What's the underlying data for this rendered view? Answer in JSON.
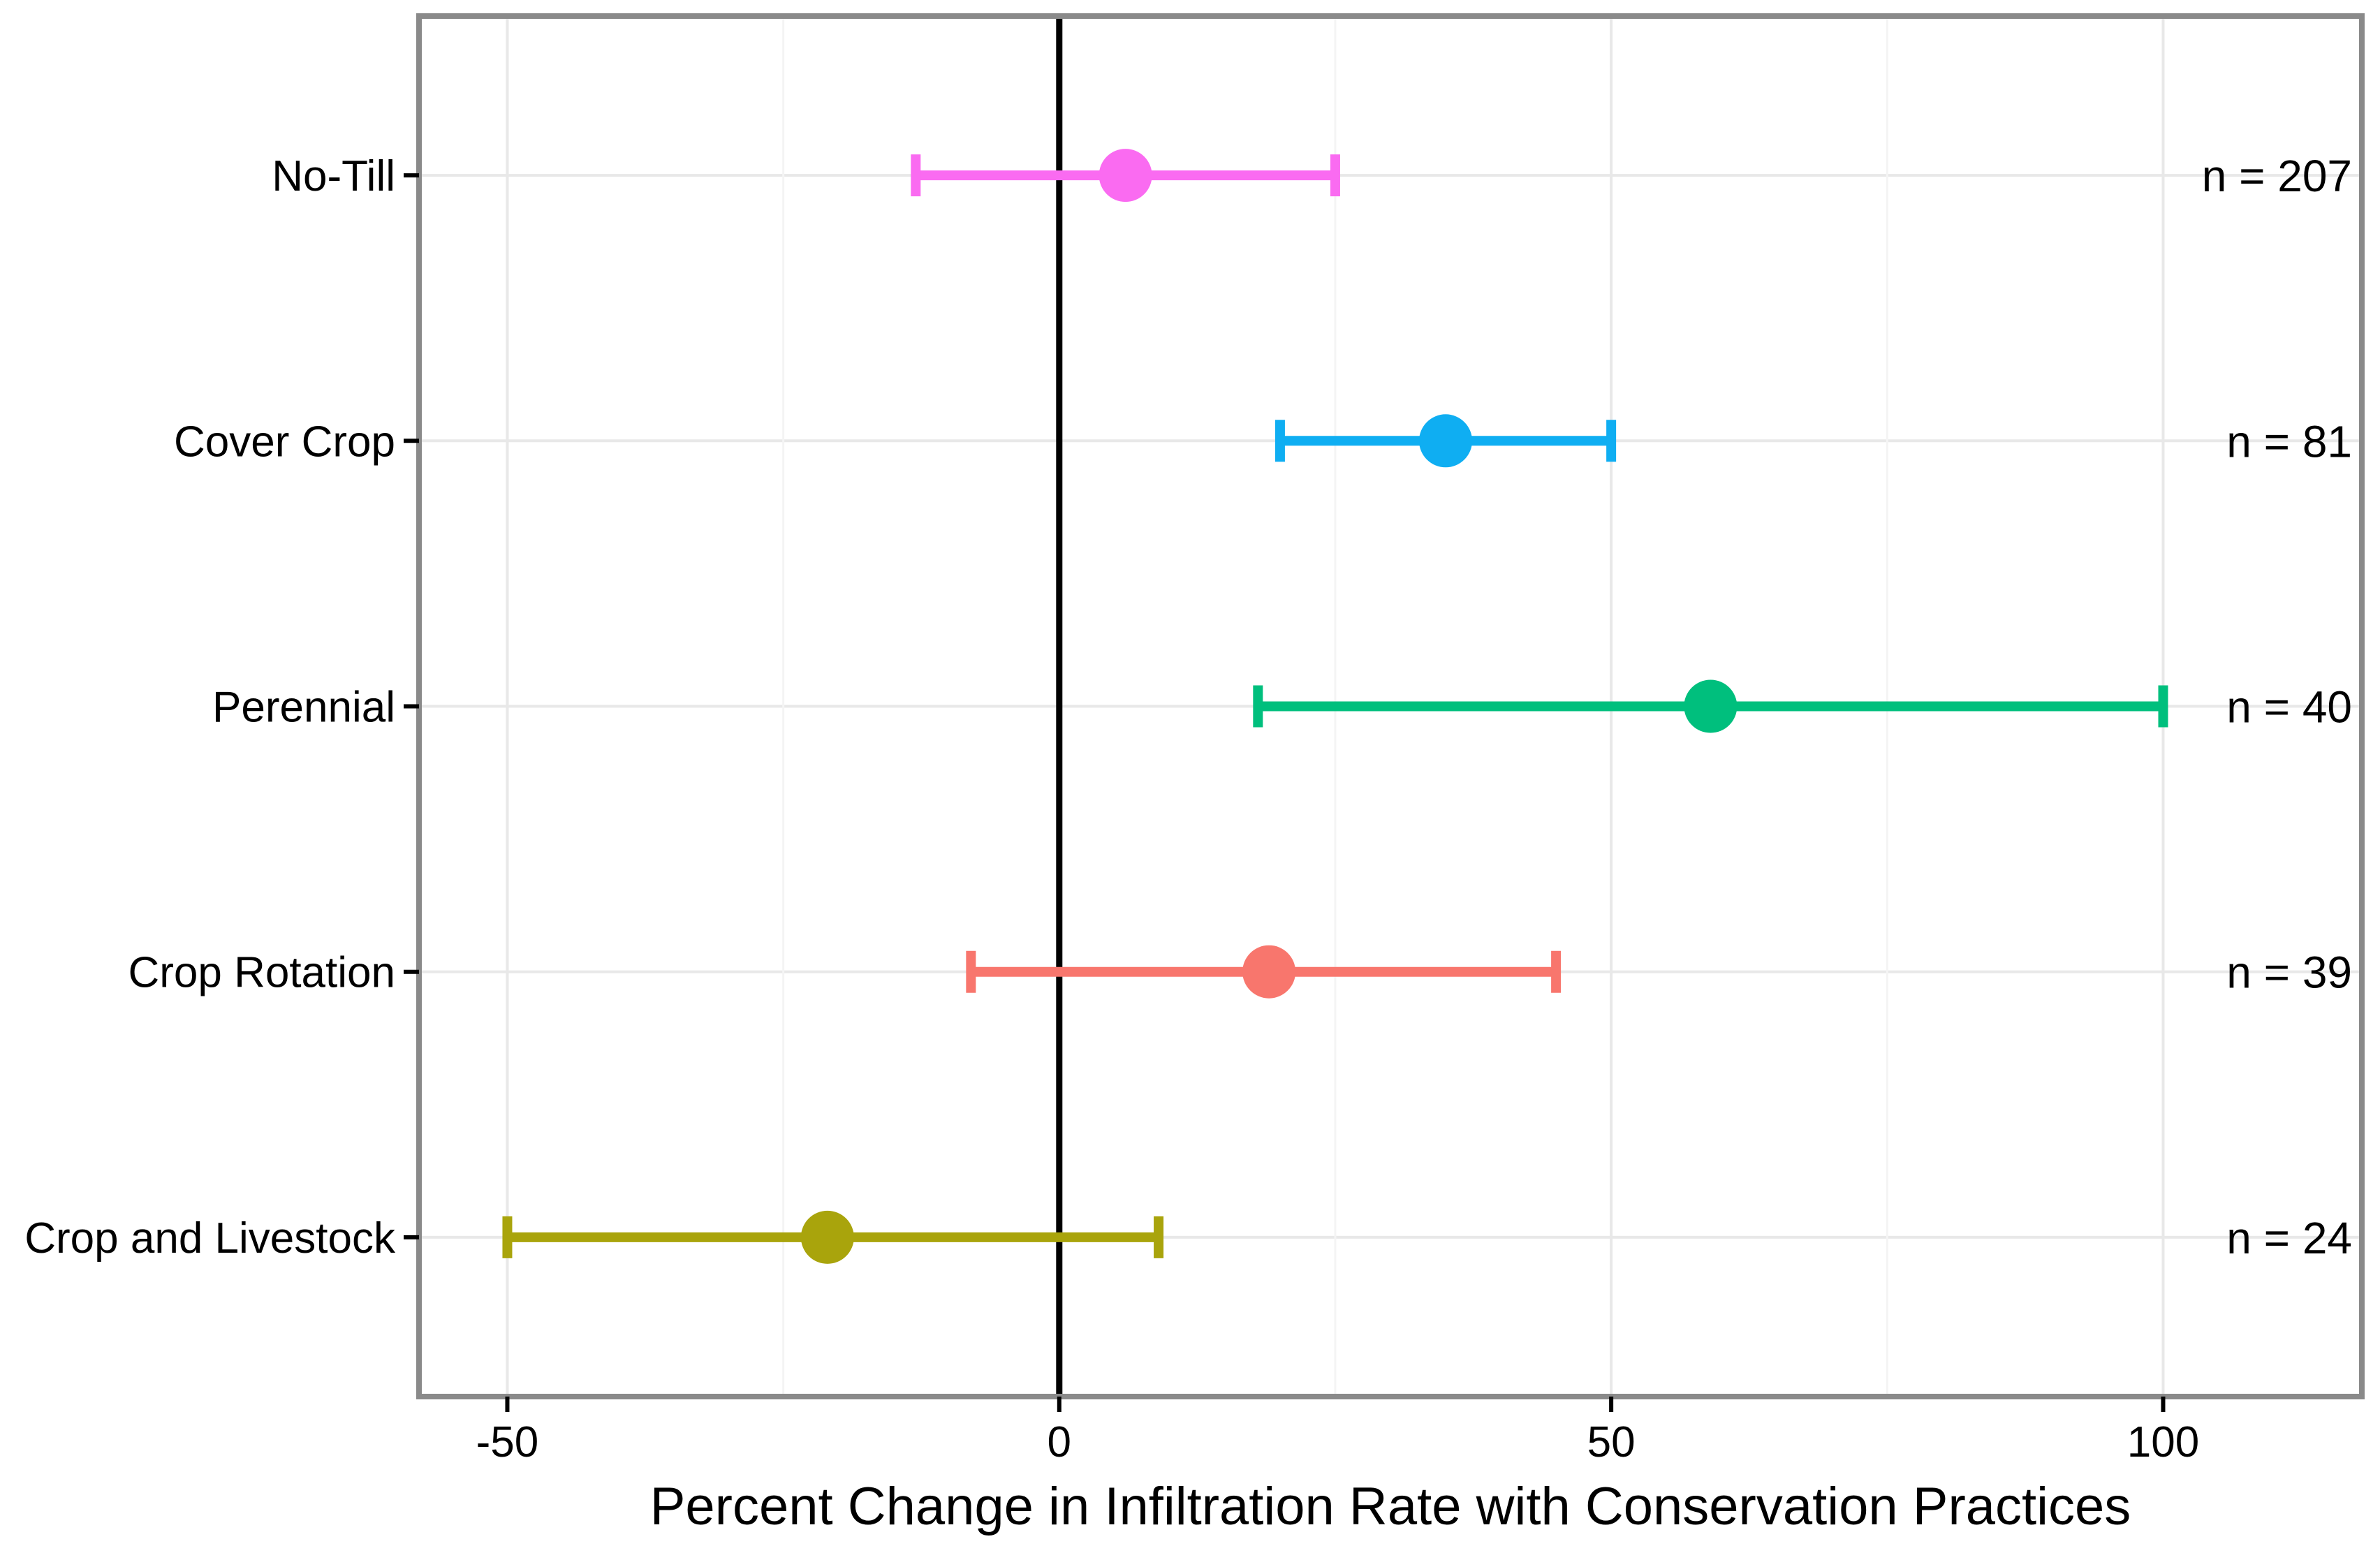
{
  "chart_data": {
    "type": "scatter",
    "subtype": "dot-with-error-bars",
    "title": "",
    "xlabel": "Percent Change in Infiltration Rate with Conservation Practices",
    "ylabel": "",
    "categories": [
      "No-Till",
      "Cover Crop",
      "Perennial",
      "Crop Rotation",
      "Crop and Livestock"
    ],
    "series": [
      {
        "name": "percent-change-in-infiltration-rate",
        "points": [
          {
            "category": "No-Till",
            "mean": 6,
            "ci_low": -13,
            "ci_high": 25,
            "n": 207,
            "n_label": "n = 207",
            "color": "#FA6BF1"
          },
          {
            "category": "Cover Crop",
            "mean": 35,
            "ci_low": 20,
            "ci_high": 50,
            "n": 81,
            "n_label": "n = 81",
            "color": "#0FAEF2"
          },
          {
            "category": "Perennial",
            "mean": 59,
            "ci_low": 18,
            "ci_high": 100,
            "n": 40,
            "n_label": "n = 40",
            "color": "#00BF7D"
          },
          {
            "category": "Crop Rotation",
            "mean": 19,
            "ci_low": -8,
            "ci_high": 45,
            "n": 39,
            "n_label": "n = 39",
            "color": "#F8766D"
          },
          {
            "category": "Crop and Livestock",
            "mean": -21,
            "ci_low": -50,
            "ci_high": 9,
            "n": 24,
            "n_label": "n = 24",
            "color": "#A9A40C"
          }
        ]
      }
    ],
    "x_ticks": [
      -50,
      0,
      50,
      100
    ],
    "x_tick_labels": [
      "-50",
      "0",
      "50",
      "100"
    ],
    "x_minor_gridlines": [
      -25,
      25,
      75
    ],
    "xlim": [
      -58,
      118
    ],
    "reference_line_x": 0,
    "grid": true,
    "legend": false,
    "colors": {
      "panel_background": "#FFFFFF",
      "panel_border": "#8A8A8A",
      "grid_major": "#E8E8E8",
      "grid_minor": "#F4F4F4",
      "reference_line": "#000000",
      "text": "#000000",
      "tick_mark": "#000000"
    }
  }
}
